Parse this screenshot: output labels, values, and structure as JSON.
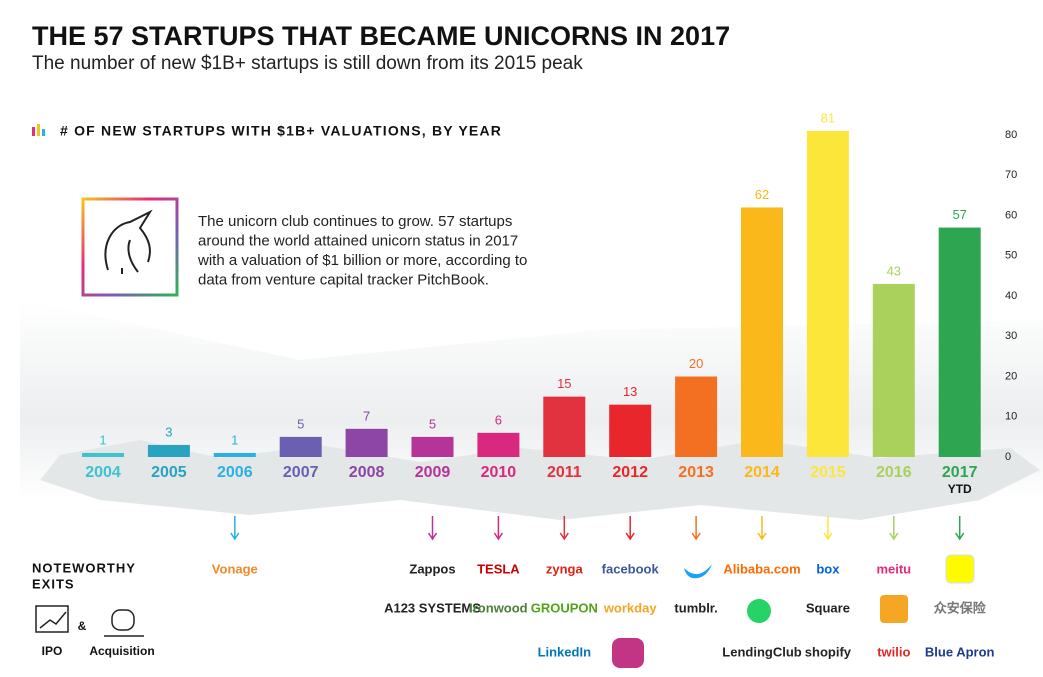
{
  "chart_data": {
    "type": "bar",
    "title": "THE 57 STARTUPS THAT BECAME UNICORNS IN 2017",
    "subtitle": "The number of new $1B+ startups is still down from its 2015 peak",
    "axis_label": "# OF NEW STARTUPS WITH $1B+ VALUATIONS, BY YEAR",
    "callout": [
      "The unicorn club continues to grow. 57 startups",
      "around the world attained unicorn status in 2017",
      "with a valuation of $1 billion or more, according to",
      "data from venture capital tracker PitchBook."
    ],
    "categories": [
      "2004",
      "2005",
      "2006",
      "2007",
      "2008",
      "2009",
      "2010",
      "2011",
      "2012",
      "2013",
      "2014",
      "2015",
      "2016",
      "2017"
    ],
    "category_note": "YTD",
    "values": [
      1,
      3,
      1,
      5,
      7,
      5,
      6,
      15,
      13,
      20,
      62,
      81,
      43,
      57
    ],
    "colors": [
      "#3cc3cf",
      "#2aa3c0",
      "#2bb0e4",
      "#6b5fb2",
      "#8d45a6",
      "#b53499",
      "#d9287f",
      "#e2313f",
      "#e8262b",
      "#f37022",
      "#fbb81b",
      "#fde63a",
      "#a9d15c",
      "#2ea551"
    ],
    "ylim": [
      0,
      80
    ],
    "yticks": [
      0,
      10,
      20,
      30,
      40,
      50,
      60,
      70,
      80
    ],
    "grid": false,
    "exits_title": [
      "NOTEWORTHY",
      "EXITS"
    ],
    "exit_legend": [
      "IPO",
      "&",
      "Acquisition"
    ],
    "exits": [
      [],
      [],
      [
        "Vonage"
      ],
      [],
      [],
      [
        "Zappos",
        "A123 SYSTEMS"
      ],
      [
        "TESLA",
        "Ironwood"
      ],
      [
        "zynga",
        "GROUPON",
        "LinkedIn"
      ],
      [
        "facebook",
        "workday"
      ],
      [
        "tumblr."
      ],
      [
        "Alibaba.com",
        "LendingClub"
      ],
      [
        "box",
        "Square",
        "shopify"
      ],
      [
        "meitu",
        "twilio"
      ],
      [
        "众安保险",
        "Blue Apron"
      ]
    ]
  }
}
